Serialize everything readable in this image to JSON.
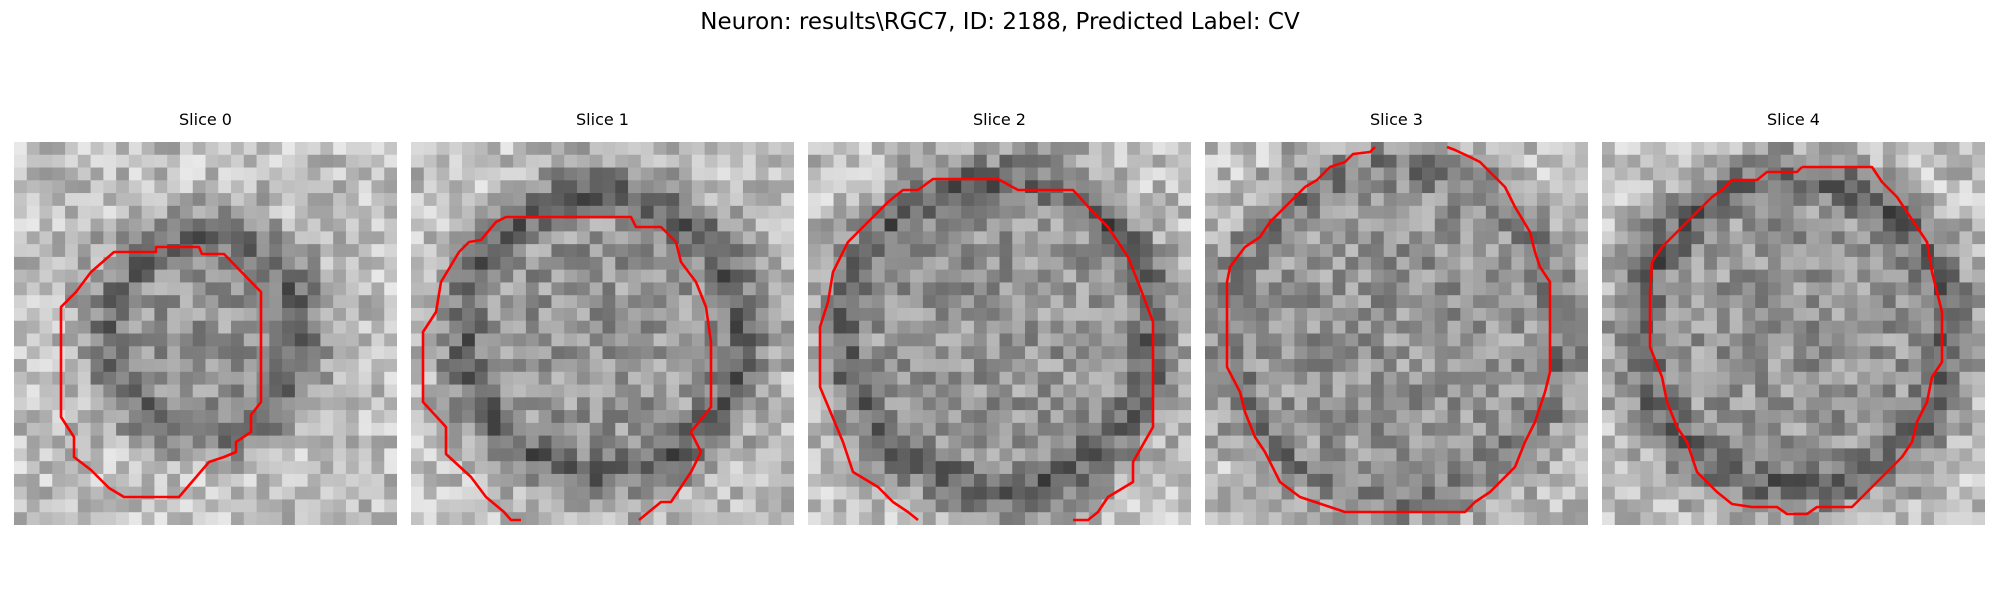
{
  "figure": {
    "title": "Neuron: results\\RGC7, ID: 2188, Predicted Label: CV"
  },
  "panels": [
    {
      "title": "Slice 0",
      "seed": 11,
      "ring": 0.5,
      "dark": 0.85
    },
    {
      "title": "Slice 1",
      "seed": 23,
      "ring": 0.72,
      "dark": 1.0
    },
    {
      "title": "Slice 2",
      "seed": 37,
      "ring": 0.8,
      "dark": 1.0
    },
    {
      "title": "Slice 3",
      "seed": 41,
      "ring": 0.86,
      "dark": 0.7
    },
    {
      "title": "Slice 4",
      "seed": 59,
      "ring": 0.8,
      "dark": 1.0
    }
  ],
  "colors": {
    "contour": "#ff0000",
    "background": "#ffffff"
  }
}
